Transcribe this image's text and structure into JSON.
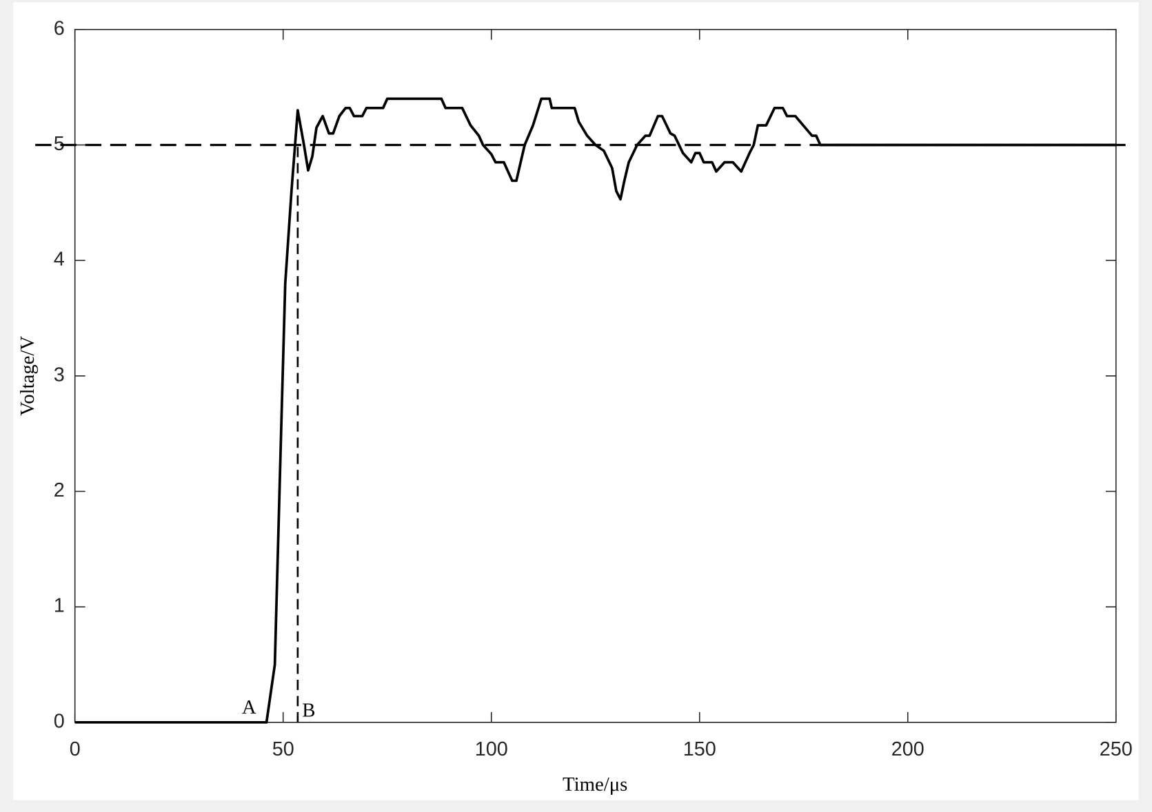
{
  "chart_data": {
    "type": "line",
    "x_label": "Time/μs",
    "y_label": "Voltage/V",
    "xlim": [
      0,
      250
    ],
    "ylim": [
      0,
      6
    ],
    "xticks": [
      0,
      50,
      100,
      150,
      200,
      250
    ],
    "yticks": [
      0,
      1,
      2,
      3,
      4,
      5,
      6
    ],
    "grid": false,
    "reference_level": 5,
    "markers": [
      {
        "label": "A",
        "x": 46
      },
      {
        "label": "B",
        "x": 53.5
      }
    ],
    "series": [
      {
        "color": "#000000",
        "x": [
          0,
          46,
          48,
          49.5,
          50.5,
          52,
          53.5,
          55,
          56,
          57,
          58,
          59.5,
          61,
          62,
          63.5,
          65,
          66,
          67,
          69,
          70,
          74,
          75,
          88,
          89,
          93,
          95,
          97,
          98,
          100,
          101,
          103,
          105,
          106,
          108,
          110,
          112,
          114,
          114.5,
          120,
          121,
          123,
          125,
          127,
          129,
          130,
          131,
          132,
          133,
          135,
          137,
          138,
          140,
          141,
          143,
          144,
          146,
          148,
          149,
          150,
          151,
          153,
          154,
          156,
          158,
          160,
          162,
          163,
          164,
          166,
          168,
          170,
          171,
          173,
          177,
          178,
          179,
          250
        ],
        "values": [
          0,
          0,
          0.5,
          2.5,
          3.8,
          4.6,
          5.3,
          5.0,
          4.78,
          4.9,
          5.15,
          5.25,
          5.1,
          5.1,
          5.25,
          5.32,
          5.32,
          5.25,
          5.25,
          5.32,
          5.32,
          5.4,
          5.4,
          5.32,
          5.32,
          5.17,
          5.08,
          5.0,
          4.92,
          4.85,
          4.85,
          4.69,
          4.69,
          5.0,
          5.17,
          5.4,
          5.4,
          5.32,
          5.32,
          5.2,
          5.08,
          5.0,
          4.95,
          4.8,
          4.6,
          4.53,
          4.7,
          4.85,
          5.0,
          5.08,
          5.08,
          5.25,
          5.25,
          5.1,
          5.08,
          4.93,
          4.85,
          4.93,
          4.93,
          4.85,
          4.85,
          4.77,
          4.85,
          4.85,
          4.77,
          4.93,
          5.0,
          5.17,
          5.17,
          5.32,
          5.32,
          5.25,
          5.25,
          5.08,
          5.08,
          5.0,
          5.0
        ]
      }
    ]
  }
}
